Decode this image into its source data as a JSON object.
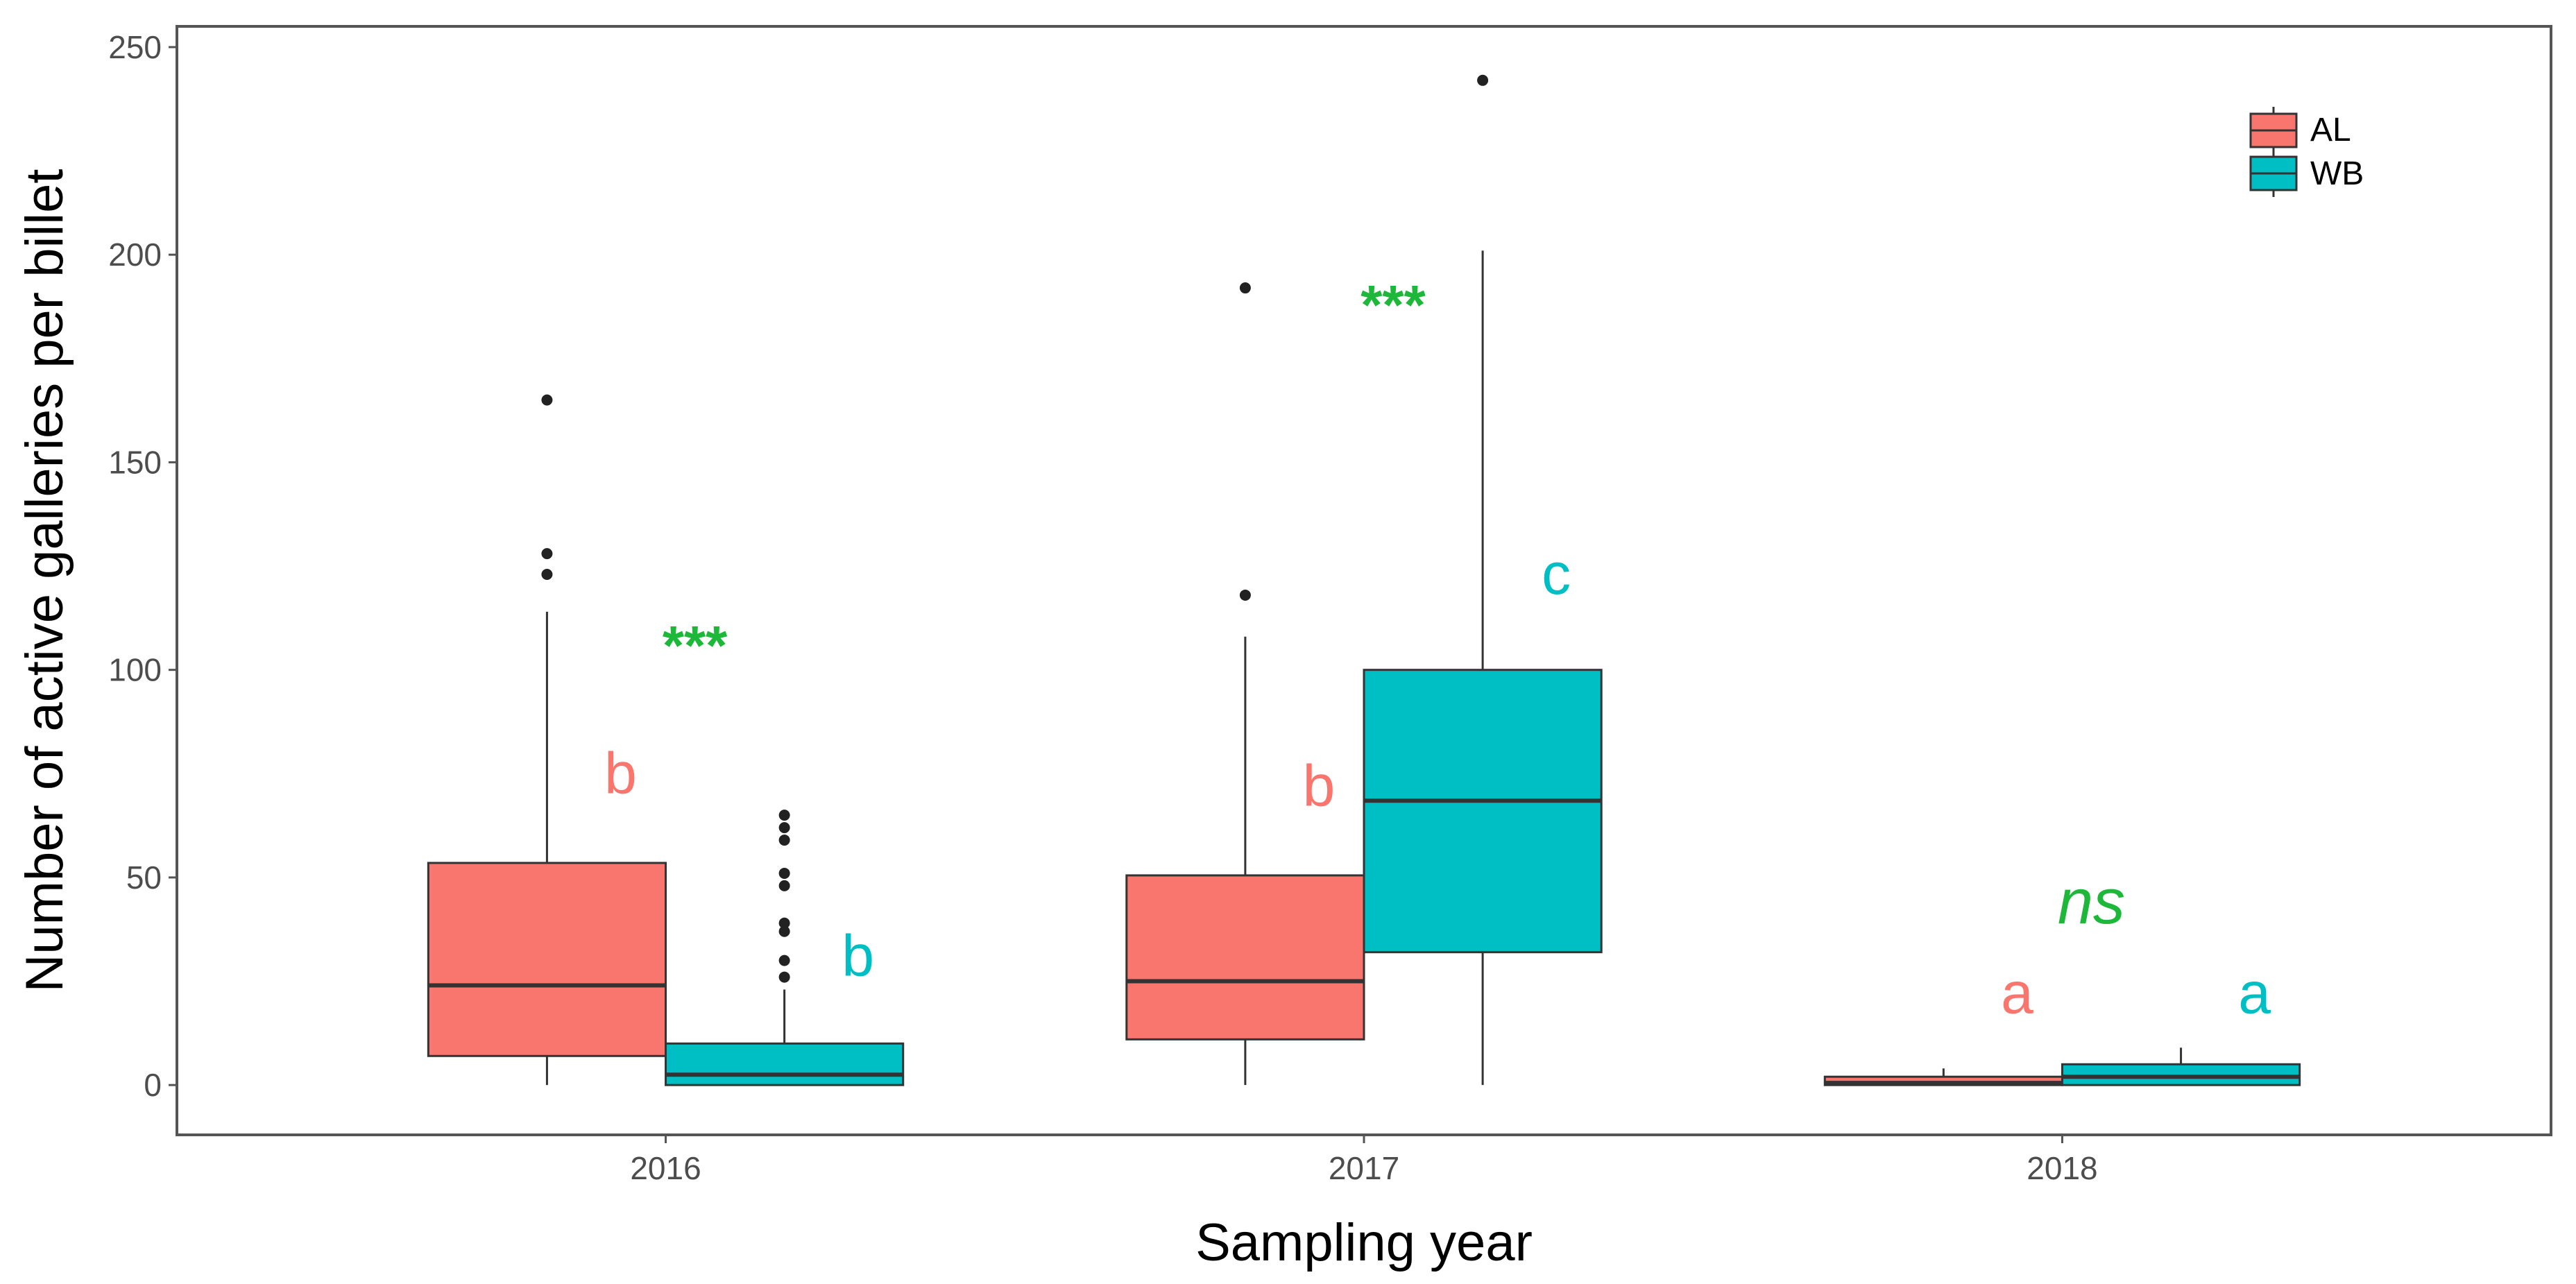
{
  "chart_data": {
    "type": "boxplot",
    "title": "",
    "xlabel": "Sampling year",
    "ylabel": "Number of active galleries per billet",
    "ylim": [
      -12,
      255
    ],
    "yticks": [
      0,
      50,
      100,
      150,
      200,
      250
    ],
    "categories": [
      "2016",
      "2017",
      "2018"
    ],
    "legend": {
      "position": "top-right",
      "entries": [
        "AL",
        "WB"
      ]
    },
    "colors": {
      "AL": "#F8766D",
      "WB": "#00BFC4",
      "significance": "#1DB83A",
      "axis": "#555555",
      "box_line": "#333333"
    },
    "series": [
      {
        "name": "AL",
        "boxes": [
          {
            "category": "2016",
            "min": 0,
            "q1": 7,
            "median": 24,
            "q3": 53.5,
            "max": 114,
            "outliers": [
              123,
              128,
              165
            ],
            "letter": "b",
            "letter_y": 75
          },
          {
            "category": "2017",
            "min": 0,
            "q1": 11,
            "median": 25,
            "q3": 50.5,
            "max": 108,
            "outliers": [
              118,
              192
            ],
            "letter": "b",
            "letter_y": 72
          },
          {
            "category": "2018",
            "min": 0,
            "q1": 0,
            "median": 0.5,
            "q3": 2,
            "max": 4,
            "outliers": [],
            "letter": "a",
            "letter_y": 22
          }
        ]
      },
      {
        "name": "WB",
        "boxes": [
          {
            "category": "2016",
            "min": 0,
            "q1": 0,
            "median": 2.5,
            "q3": 10,
            "max": 23,
            "outliers": [
              26,
              30,
              37,
              39,
              48,
              51,
              59,
              62,
              65
            ],
            "letter": "b",
            "letter_y": 31
          },
          {
            "category": "2017",
            "min": 0,
            "q1": 32,
            "median": 68.5,
            "q3": 100,
            "max": 201,
            "outliers": [
              242
            ],
            "letter": "c",
            "letter_y": 123
          },
          {
            "category": "2018",
            "min": 0,
            "q1": 0,
            "median": 2,
            "q3": 5,
            "max": 9,
            "outliers": [],
            "letter": "a",
            "letter_y": 22
          }
        ]
      }
    ],
    "significance": [
      {
        "category": "2016",
        "label": "***",
        "y": 108
      },
      {
        "category": "2017",
        "label": "***",
        "y": 190
      },
      {
        "category": "2018",
        "label": "ns",
        "y": 44,
        "italic": true
      }
    ]
  }
}
